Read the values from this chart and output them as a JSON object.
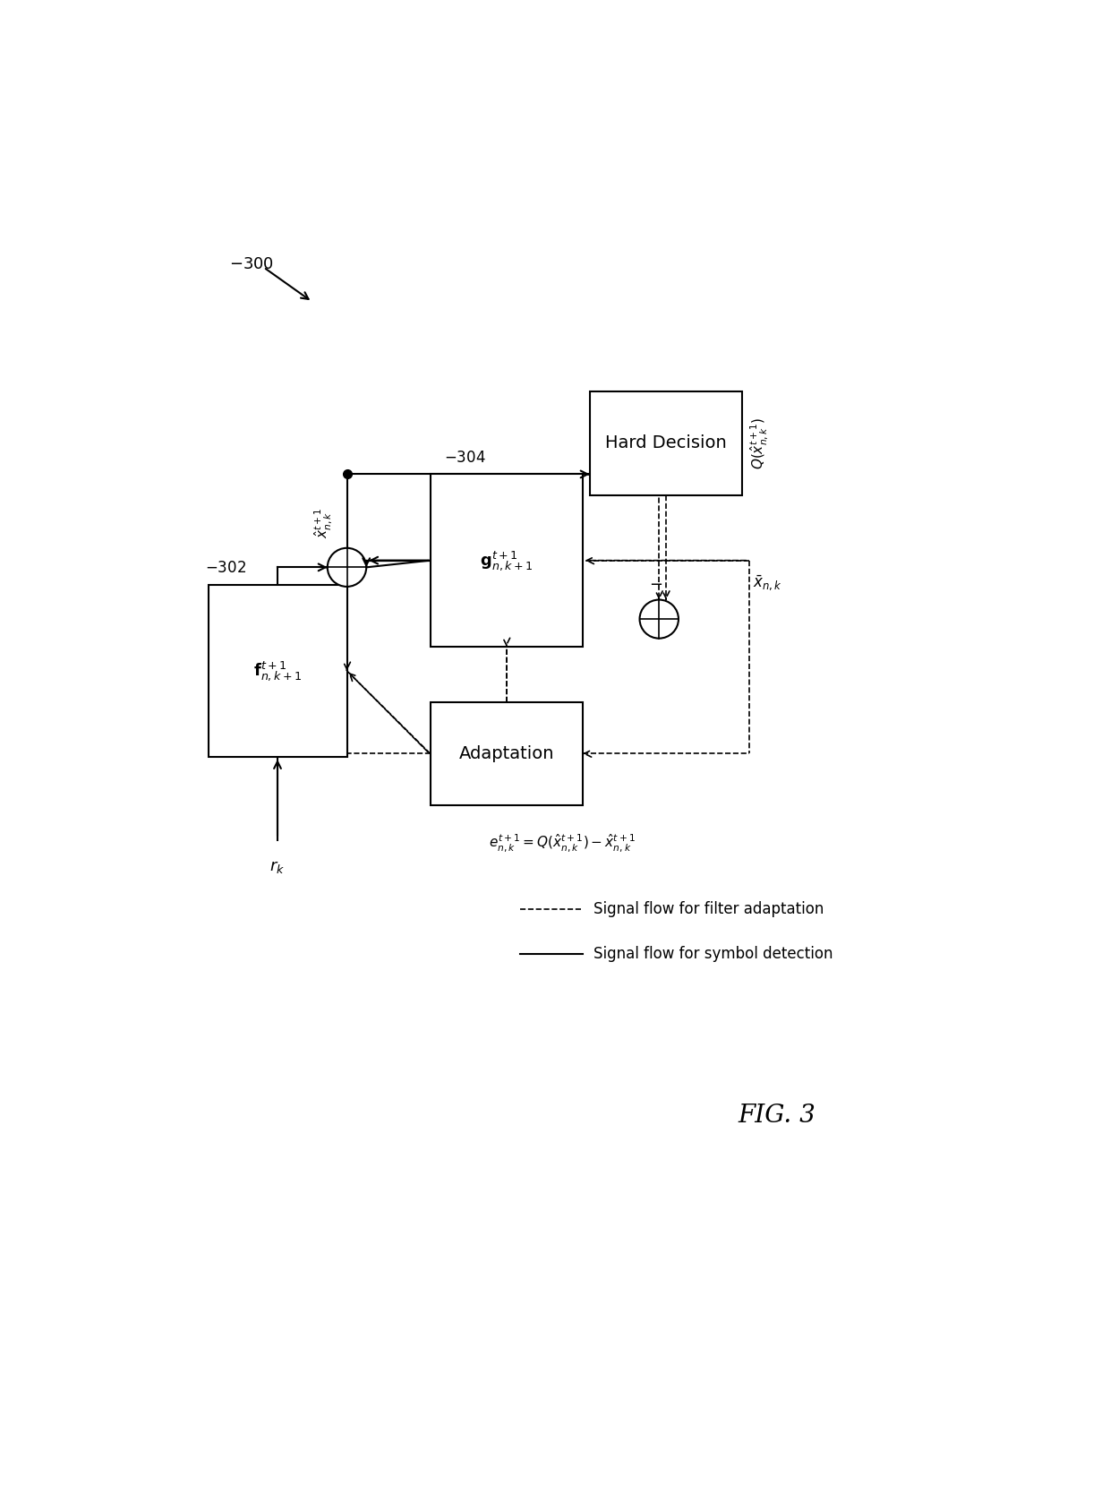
{
  "fig_width": 12.4,
  "fig_height": 16.59,
  "bg_color": "#ffffff",
  "label_300": "300",
  "label_302": "302",
  "label_304": "304",
  "box_f_label": "$\\mathbf{f}^{t+1}_{n,k+1}$",
  "box_g_label": "$\\mathbf{g}^{t+1}_{n,k+1}$",
  "box_hard_label": "Hard Decision",
  "box_adapt_label": "Adaptation",
  "label_rk": "$r_k$",
  "label_xhat": "$\\hat{x}^{t+1}_{n,k}$",
  "label_xbar": "$\\bar{x}_{n,k}$",
  "label_Qxhat": "$Q(\\hat{x}^{t+1}_{n,k})$",
  "label_error": "$e^{t+1}_{n,k}=Q(\\hat{x}^{t+1}_{n,k})-\\hat{x}^{t+1}_{n,k}$",
  "legend_dashed": "Signal flow for filter adaptation",
  "legend_solid": "Signal flow for symbol detection",
  "fig3_label": "FIG. 3",
  "xlim": [
    0,
    12.4
  ],
  "ylim": [
    0,
    16.59
  ]
}
